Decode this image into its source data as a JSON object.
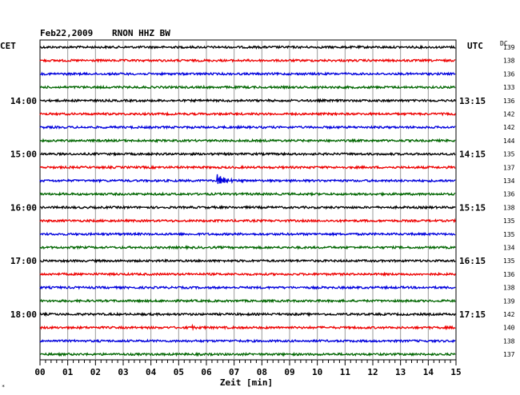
{
  "header": {
    "date": "Feb22,2009",
    "station": "RNON HHZ BW",
    "left_tz": "CET",
    "right_tz": "UTC",
    "dc_label": "DC"
  },
  "chart_data": {
    "type": "line",
    "subtype": "helicorder",
    "xlabel": "Zeit [min]",
    "xlim": [
      0,
      15
    ],
    "x_ticks": [
      "00",
      "01",
      "02",
      "03",
      "04",
      "05",
      "06",
      "07",
      "08",
      "09",
      "10",
      "11",
      "12",
      "13",
      "14",
      "15"
    ],
    "trace_colors": [
      "#000000",
      "#ee0000",
      "#0000dd",
      "#006600"
    ],
    "left_hour_labels": [
      {
        "trace": 4,
        "text": "14:00"
      },
      {
        "trace": 8,
        "text": "15:00"
      },
      {
        "trace": 12,
        "text": "16:00"
      },
      {
        "trace": 16,
        "text": "17:00"
      },
      {
        "trace": 20,
        "text": "18:00"
      }
    ],
    "right_hour_labels": [
      {
        "trace": 4,
        "text": "13:15"
      },
      {
        "trace": 8,
        "text": "14:15"
      },
      {
        "trace": 12,
        "text": "15:15"
      },
      {
        "trace": 16,
        "text": "16:15"
      },
      {
        "trace": 20,
        "text": "17:15"
      }
    ],
    "dc_offsets": [
      "139",
      "138",
      "136",
      "133",
      "136",
      "142",
      "142",
      "144",
      "135",
      "137",
      "134",
      "136",
      "138",
      "135",
      "135",
      "134",
      "135",
      "136",
      "138",
      "139",
      "142",
      "140",
      "138",
      "137"
    ],
    "events": [
      {
        "trace": 10,
        "minute": 6.4,
        "amplitude": 9,
        "decay_min": 0.9
      },
      {
        "trace": 21,
        "minute": 5.5,
        "amplitude": 5,
        "decay_min": 0.25
      }
    ]
  }
}
